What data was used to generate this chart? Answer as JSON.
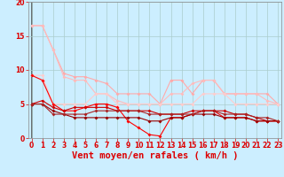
{
  "title": "",
  "xlabel": "Vent moyen/en rafales ( km/h )",
  "background_color": "#cceeff",
  "grid_color": "#aacccc",
  "xlim": [
    -0.3,
    23.3
  ],
  "ylim": [
    0,
    20
  ],
  "yticks": [
    0,
    5,
    10,
    15,
    20
  ],
  "xticks": [
    0,
    1,
    2,
    3,
    4,
    5,
    6,
    7,
    8,
    9,
    10,
    11,
    12,
    13,
    14,
    15,
    16,
    17,
    18,
    19,
    20,
    21,
    22,
    23
  ],
  "lines": [
    {
      "x": [
        0,
        1,
        2,
        3,
        4,
        5,
        6,
        7,
        8,
        9,
        10,
        11,
        12,
        13,
        14,
        15,
        16,
        17,
        18,
        19,
        20,
        21,
        22,
        23
      ],
      "y": [
        16.5,
        16.5,
        13.0,
        9.5,
        9.0,
        9.0,
        8.5,
        8.0,
        6.5,
        6.5,
        6.5,
        6.5,
        5.0,
        8.5,
        8.5,
        6.5,
        8.5,
        8.5,
        6.5,
        6.5,
        6.5,
        6.5,
        6.5,
        5.0
      ],
      "color": "#ffaaaa",
      "marker": "D",
      "markersize": 2.0,
      "linewidth": 0.8
    },
    {
      "x": [
        0,
        1,
        2,
        3,
        4,
        5,
        6,
        7,
        8,
        9,
        10,
        11,
        12,
        13,
        14,
        15,
        16,
        17,
        18,
        19,
        20,
        21,
        22,
        23
      ],
      "y": [
        16.5,
        16.5,
        13.0,
        9.0,
        8.5,
        8.5,
        6.5,
        6.5,
        5.5,
        5.0,
        5.0,
        5.0,
        5.0,
        6.5,
        6.5,
        8.0,
        8.5,
        8.5,
        6.5,
        6.5,
        6.5,
        6.5,
        5.5,
        5.0
      ],
      "color": "#ffbbbb",
      "marker": "D",
      "markersize": 2.0,
      "linewidth": 0.8
    },
    {
      "x": [
        0,
        1,
        2,
        3,
        4,
        5,
        6,
        7,
        8,
        9,
        10,
        11,
        12,
        13,
        14,
        15,
        16,
        17,
        18,
        19,
        20,
        21,
        22,
        23
      ],
      "y": [
        9.2,
        9.2,
        5.0,
        5.0,
        5.0,
        5.0,
        6.5,
        6.5,
        5.0,
        5.0,
        5.0,
        5.0,
        5.0,
        5.0,
        5.0,
        5.0,
        6.5,
        6.5,
        6.5,
        5.0,
        5.0,
        5.0,
        5.0,
        5.0
      ],
      "color": "#ffcccc",
      "marker": "D",
      "markersize": 2.0,
      "linewidth": 0.8
    },
    {
      "x": [
        0,
        1,
        2,
        3,
        4,
        5,
        6,
        7,
        8,
        9,
        10,
        11,
        12,
        13,
        14,
        15,
        16,
        17,
        18,
        19,
        20,
        21,
        22,
        23
      ],
      "y": [
        9.2,
        8.5,
        5.0,
        4.0,
        4.0,
        4.5,
        5.0,
        5.0,
        4.5,
        2.5,
        1.5,
        0.5,
        0.3,
        3.0,
        3.0,
        3.5,
        4.0,
        4.0,
        3.0,
        3.0,
        3.0,
        2.5,
        2.5,
        2.5
      ],
      "color": "#ff0000",
      "marker": "D",
      "markersize": 2.0,
      "linewidth": 0.8
    },
    {
      "x": [
        0,
        1,
        2,
        3,
        4,
        5,
        6,
        7,
        8,
        9,
        10,
        11,
        12,
        13,
        14,
        15,
        16,
        17,
        18,
        19,
        20,
        21,
        22,
        23
      ],
      "y": [
        5.0,
        5.5,
        4.5,
        4.0,
        4.5,
        4.5,
        4.5,
        4.5,
        4.0,
        4.0,
        4.0,
        4.0,
        3.5,
        3.5,
        3.5,
        4.0,
        4.0,
        4.0,
        4.0,
        3.5,
        3.5,
        3.0,
        2.5,
        2.5
      ],
      "color": "#cc0000",
      "marker": "D",
      "markersize": 2.0,
      "linewidth": 0.8
    },
    {
      "x": [
        0,
        1,
        2,
        3,
        4,
        5,
        6,
        7,
        8,
        9,
        10,
        11,
        12,
        13,
        14,
        15,
        16,
        17,
        18,
        19,
        20,
        21,
        22,
        23
      ],
      "y": [
        5.0,
        5.0,
        4.0,
        3.5,
        3.0,
        3.0,
        3.0,
        3.0,
        3.0,
        3.0,
        3.0,
        2.5,
        2.5,
        3.0,
        3.0,
        3.5,
        3.5,
        3.5,
        3.0,
        3.0,
        3.0,
        2.5,
        2.5,
        2.5
      ],
      "color": "#990000",
      "marker": "D",
      "markersize": 2.0,
      "linewidth": 0.8
    },
    {
      "x": [
        0,
        1,
        2,
        3,
        4,
        5,
        6,
        7,
        8,
        9,
        10,
        11,
        12,
        13,
        14,
        15,
        16,
        17,
        18,
        19,
        20,
        21,
        22,
        23
      ],
      "y": [
        5.0,
        5.0,
        3.5,
        3.5,
        3.5,
        3.5,
        4.0,
        4.0,
        4.0,
        4.0,
        4.0,
        3.5,
        3.5,
        3.5,
        3.5,
        3.5,
        4.0,
        4.0,
        3.5,
        3.5,
        3.5,
        3.0,
        3.0,
        2.5
      ],
      "color": "#aa2222",
      "marker": "D",
      "markersize": 2.0,
      "linewidth": 0.8
    }
  ],
  "tick_color": "#dd0000",
  "tick_fontsize": 5.5,
  "xlabel_fontsize": 7.5,
  "axis_label_color": "#dd0000"
}
